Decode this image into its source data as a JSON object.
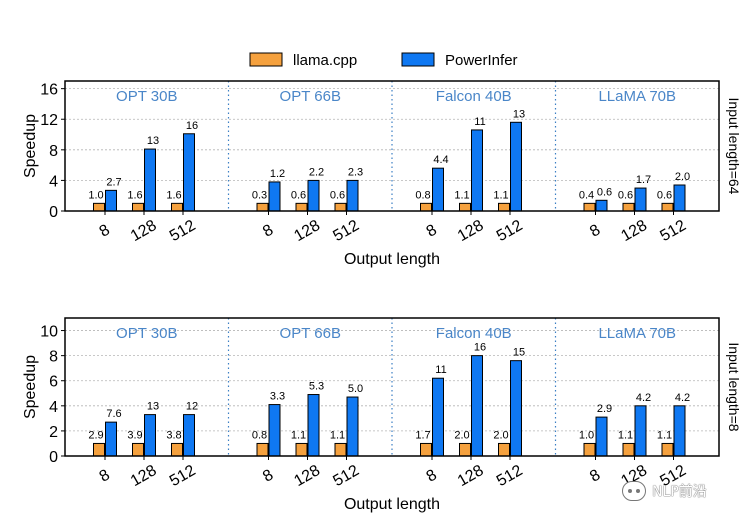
{
  "legend": [
    {
      "label": "llama.cpp",
      "color": "#f5a13e"
    },
    {
      "label": "PowerInfer",
      "color": "#0f78f2"
    }
  ],
  "watermark": "NLP前沿",
  "chart_data": [
    {
      "type": "bar",
      "panel_label": "Input length=64",
      "xlabel": "Output length",
      "ylabel": "Speedup",
      "ylim": [
        0,
        17
      ],
      "yticks": [
        0,
        4,
        8,
        12,
        16
      ],
      "grid": true,
      "groups": [
        {
          "name": "OPT 30B",
          "categories": [
            "8",
            "128",
            "512"
          ],
          "series": [
            {
              "name": "llama.cpp",
              "values": [
                1.0,
                1.0,
                1.0
              ],
              "labels": [
                "1.0",
                "1.6",
                "1.6"
              ]
            },
            {
              "name": "PowerInfer",
              "values": [
                2.7,
                8.1,
                10.1
              ],
              "labels": [
                "2.7",
                "13",
                "16"
              ]
            }
          ]
        },
        {
          "name": "OPT 66B",
          "categories": [
            "8",
            "128",
            "512"
          ],
          "series": [
            {
              "name": "llama.cpp",
              "values": [
                1.0,
                1.0,
                1.0
              ],
              "labels": [
                "0.3",
                "0.6",
                "0.6"
              ]
            },
            {
              "name": "PowerInfer",
              "values": [
                3.8,
                4.0,
                4.0
              ],
              "labels": [
                "1.2",
                "2.2",
                "2.3"
              ]
            }
          ]
        },
        {
          "name": "Falcon 40B",
          "categories": [
            "8",
            "128",
            "512"
          ],
          "series": [
            {
              "name": "llama.cpp",
              "values": [
                1.0,
                1.0,
                1.0
              ],
              "labels": [
                "0.8",
                "1.1",
                "1.1"
              ]
            },
            {
              "name": "PowerInfer",
              "values": [
                5.6,
                10.6,
                11.6
              ],
              "labels": [
                "4.4",
                "11",
                "13"
              ]
            }
          ]
        },
        {
          "name": "LLaMA 70B",
          "categories": [
            "8",
            "128",
            "512"
          ],
          "series": [
            {
              "name": "llama.cpp",
              "values": [
                1.0,
                1.0,
                1.0
              ],
              "labels": [
                "0.4",
                "0.6",
                "0.6"
              ]
            },
            {
              "name": "PowerInfer",
              "values": [
                1.4,
                3.0,
                3.4
              ],
              "labels": [
                "0.6",
                "1.7",
                "2.0"
              ]
            }
          ]
        }
      ]
    },
    {
      "type": "bar",
      "panel_label": "Input length=8",
      "xlabel": "Output length",
      "ylabel": "Speedup",
      "ylim": [
        0,
        11
      ],
      "yticks": [
        0,
        2,
        4,
        6,
        8,
        10
      ],
      "grid": true,
      "groups": [
        {
          "name": "OPT 30B",
          "categories": [
            "8",
            "128",
            "512"
          ],
          "series": [
            {
              "name": "llama.cpp",
              "values": [
                1.0,
                1.0,
                1.0
              ],
              "labels": [
                "2.9",
                "3.9",
                "3.8"
              ]
            },
            {
              "name": "PowerInfer",
              "values": [
                2.7,
                3.3,
                3.3
              ],
              "labels": [
                "7.6",
                "13",
                "12"
              ]
            }
          ]
        },
        {
          "name": "OPT 66B",
          "categories": [
            "8",
            "128",
            "512"
          ],
          "series": [
            {
              "name": "llama.cpp",
              "values": [
                1.0,
                1.0,
                1.0
              ],
              "labels": [
                "0.8",
                "1.1",
                "1.1"
              ]
            },
            {
              "name": "PowerInfer",
              "values": [
                4.1,
                4.9,
                4.7
              ],
              "labels": [
                "3.3",
                "5.3",
                "5.0"
              ]
            }
          ]
        },
        {
          "name": "Falcon 40B",
          "categories": [
            "8",
            "128",
            "512"
          ],
          "series": [
            {
              "name": "llama.cpp",
              "values": [
                1.0,
                1.0,
                1.0
              ],
              "labels": [
                "1.7",
                "2.0",
                "2.0"
              ]
            },
            {
              "name": "PowerInfer",
              "values": [
                6.2,
                8.0,
                7.6
              ],
              "labels": [
                "11",
                "16",
                "15"
              ]
            }
          ]
        },
        {
          "name": "LLaMA 70B",
          "categories": [
            "8",
            "128",
            "512"
          ],
          "series": [
            {
              "name": "llama.cpp",
              "values": [
                1.0,
                1.0,
                1.0
              ],
              "labels": [
                "1.0",
                "1.1",
                "1.1"
              ]
            },
            {
              "name": "PowerInfer",
              "values": [
                3.1,
                4.0,
                4.0
              ],
              "labels": [
                "2.9",
                "4.2",
                "4.2"
              ]
            }
          ]
        }
      ]
    }
  ]
}
